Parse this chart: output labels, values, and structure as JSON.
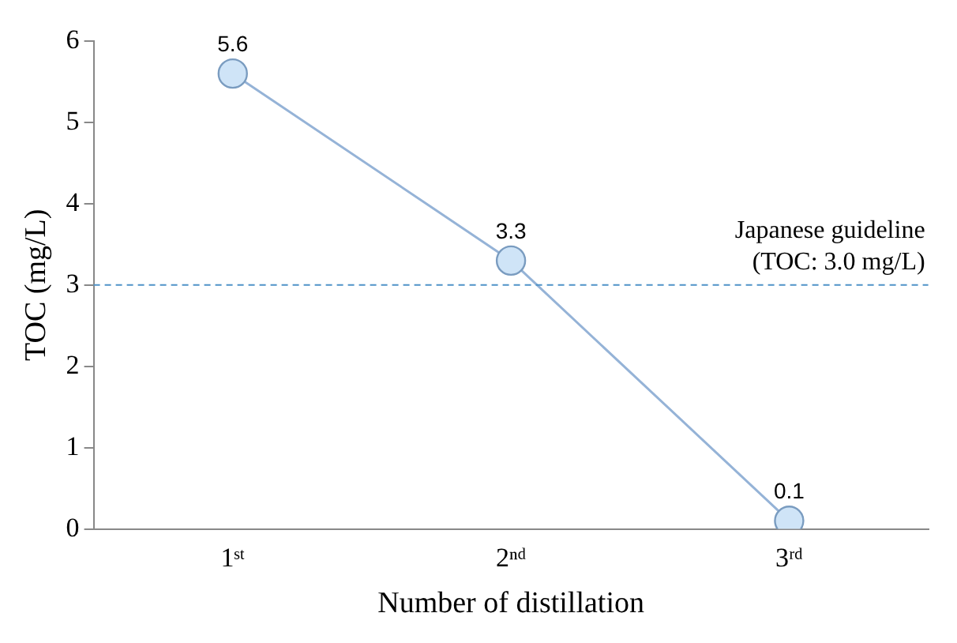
{
  "chart_data": {
    "type": "line",
    "xlabel": "Number of distillation",
    "ylabel": "TOC (mg/L)",
    "categories": [
      "1ˢᵗ",
      "2ⁿᵈ",
      "3ʳᵈ"
    ],
    "series": [
      {
        "color": "#95b3d7",
        "values": [
          5.6,
          3.3,
          0.1
        ]
      }
    ],
    "ylim": [
      0,
      6
    ],
    "yticks": [
      0,
      1,
      2,
      3,
      4,
      5,
      6
    ],
    "grid": false,
    "legend": false,
    "marker": "circle",
    "line_style": "solid",
    "data_labels": true,
    "ref_lines": [
      {
        "axis": "y",
        "value": 3,
        "label": "Japanese guideline\n(TOC: 3.0 mg/L)",
        "color": "#4f93c8",
        "line_style": "dashed"
      }
    ]
  }
}
